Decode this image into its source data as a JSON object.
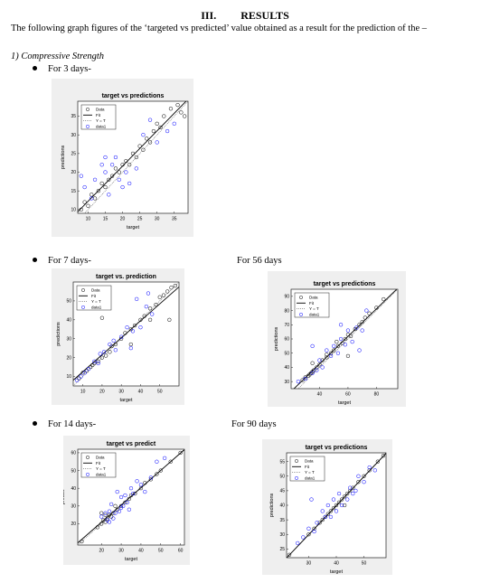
{
  "heading": {
    "number": "III.",
    "title": "RESULTS"
  },
  "intro_text": "The following graph figures of the ‘targeted vs predicted’ value obtained as a result for the prediction of the –",
  "section_label": "1)   Compressive Strength",
  "items": [
    {
      "label": "For 3 days-"
    },
    {
      "label": "For 7 days-"
    },
    {
      "label": "For 56 days"
    },
    {
      "label": "For 14 days-"
    },
    {
      "label": "For 90 days"
    }
  ],
  "colors": {
    "data_circle": "#000000",
    "data1_circle": "#0000ff",
    "fit_line": "#000000",
    "panel_bg": "#efefef"
  },
  "chart_data": [
    {
      "type": "scatter",
      "title": "target vs predictions",
      "xlabel": "target",
      "ylabel": "predictions",
      "xlim": [
        7,
        39
      ],
      "ylim": [
        9,
        39
      ],
      "xticks": [
        10,
        15,
        20,
        25,
        30,
        35
      ],
      "yticks": [
        10,
        15,
        20,
        25,
        30,
        35
      ],
      "legend": [
        "Data",
        "Fit",
        "Y = T",
        "data1"
      ],
      "legend_position": "top-left",
      "series": [
        {
          "name": "Data",
          "points": [
            [
              8,
              10
            ],
            [
              9,
              12
            ],
            [
              10,
              11
            ],
            [
              11,
              14
            ],
            [
              12,
              13
            ],
            [
              13,
              15
            ],
            [
              14,
              17
            ],
            [
              15,
              16
            ],
            [
              16,
              18
            ],
            [
              17,
              19
            ],
            [
              18,
              21
            ],
            [
              19,
              20
            ],
            [
              20,
              22
            ],
            [
              21,
              23
            ],
            [
              22,
              22
            ],
            [
              23,
              25
            ],
            [
              24,
              24
            ],
            [
              25,
              27
            ],
            [
              26,
              26
            ],
            [
              27,
              29
            ],
            [
              28,
              28
            ],
            [
              29,
              31
            ],
            [
              30,
              33
            ],
            [
              31,
              32
            ],
            [
              32,
              35
            ],
            [
              34,
              37
            ],
            [
              36,
              38
            ],
            [
              37,
              36
            ],
            [
              38,
              35
            ]
          ]
        },
        {
          "name": "data1",
          "points": [
            [
              8,
              19
            ],
            [
              9,
              16
            ],
            [
              11,
              13
            ],
            [
              12,
              18
            ],
            [
              14,
              22
            ],
            [
              15,
              20
            ],
            [
              16,
              14
            ],
            [
              18,
              24
            ],
            [
              19,
              18
            ],
            [
              20,
              16
            ],
            [
              22,
              17
            ],
            [
              24,
              21
            ],
            [
              26,
              30
            ],
            [
              28,
              34
            ],
            [
              30,
              28
            ],
            [
              33,
              31
            ],
            [
              35,
              33
            ],
            [
              15,
              24
            ],
            [
              17,
              22
            ],
            [
              21,
              20
            ]
          ]
        }
      ]
    },
    {
      "type": "scatter",
      "title": "target vs. prediction",
      "xlabel": "target",
      "ylabel": "predictions",
      "xlim": [
        5,
        60
      ],
      "ylim": [
        5,
        60
      ],
      "xticks": [
        10,
        20,
        30,
        40,
        50
      ],
      "yticks": [
        10,
        20,
        30,
        40,
        50
      ],
      "legend": [
        "Data",
        "Fit",
        "Y = T",
        "data1"
      ],
      "legend_position": "top-left",
      "series": [
        {
          "name": "Data",
          "points": [
            [
              8,
              9
            ],
            [
              10,
              12
            ],
            [
              12,
              13
            ],
            [
              14,
              15
            ],
            [
              15,
              16
            ],
            [
              16,
              17
            ],
            [
              18,
              18
            ],
            [
              20,
              20
            ],
            [
              22,
              21
            ],
            [
              24,
              23
            ],
            [
              25,
              26
            ],
            [
              27,
              27
            ],
            [
              30,
              30
            ],
            [
              32,
              33
            ],
            [
              35,
              35
            ],
            [
              37,
              37
            ],
            [
              40,
              40
            ],
            [
              42,
              42
            ],
            [
              45,
              46
            ],
            [
              48,
              48
            ],
            [
              50,
              52
            ],
            [
              52,
              53
            ],
            [
              54,
              55
            ],
            [
              56,
              57
            ],
            [
              58,
              58
            ],
            [
              55,
              40
            ],
            [
              45,
              40
            ],
            [
              35,
              27
            ],
            [
              20,
              41
            ]
          ]
        },
        {
          "name": "data1",
          "points": [
            [
              7,
              8
            ],
            [
              9,
              10
            ],
            [
              11,
              12
            ],
            [
              13,
              14
            ],
            [
              16,
              18
            ],
            [
              18,
              17
            ],
            [
              21,
              23
            ],
            [
              24,
              27
            ],
            [
              27,
              24
            ],
            [
              30,
              31
            ],
            [
              33,
              36
            ],
            [
              36,
              34
            ],
            [
              40,
              36
            ],
            [
              43,
              47
            ],
            [
              46,
              43
            ],
            [
              38,
              51
            ],
            [
              44,
              54
            ],
            [
              35,
              25
            ],
            [
              26,
              29
            ],
            [
              19,
              22
            ]
          ]
        }
      ]
    },
    {
      "type": "scatter",
      "title": "target vs predictions",
      "xlabel": "target",
      "ylabel": "predictions",
      "xlim": [
        20,
        95
      ],
      "ylim": [
        25,
        95
      ],
      "xticks": [
        40,
        60,
        80
      ],
      "yticks": [
        30,
        40,
        50,
        60,
        70,
        80,
        90
      ],
      "legend": [
        "Data",
        "Fit",
        "Y = T",
        "data1"
      ],
      "legend_position": "top-left",
      "series": [
        {
          "name": "Data",
          "points": [
            [
              28,
              31
            ],
            [
              30,
              33
            ],
            [
              32,
              34
            ],
            [
              33,
              35
            ],
            [
              34,
              36
            ],
            [
              35,
              37
            ],
            [
              36,
              38
            ],
            [
              38,
              40
            ],
            [
              40,
              42
            ],
            [
              42,
              45
            ],
            [
              45,
              47
            ],
            [
              48,
              50
            ],
            [
              50,
              52
            ],
            [
              53,
              55
            ],
            [
              56,
              57
            ],
            [
              58,
              60
            ],
            [
              60,
              63
            ],
            [
              62,
              62
            ],
            [
              65,
              67
            ],
            [
              68,
              70
            ],
            [
              70,
              72
            ],
            [
              72,
              75
            ],
            [
              75,
              78
            ],
            [
              80,
              82
            ],
            [
              85,
              88
            ],
            [
              52,
              58
            ],
            [
              60,
              48
            ],
            [
              45,
              49
            ],
            [
              35,
              43
            ]
          ]
        },
        {
          "name": "data1",
          "points": [
            [
              25,
              30
            ],
            [
              30,
              32
            ],
            [
              35,
              36
            ],
            [
              38,
              38
            ],
            [
              42,
              40
            ],
            [
              45,
              52
            ],
            [
              48,
              48
            ],
            [
              50,
              55
            ],
            [
              53,
              50
            ],
            [
              55,
              60
            ],
            [
              58,
              56
            ],
            [
              60,
              66
            ],
            [
              63,
              58
            ],
            [
              66,
              68
            ],
            [
              70,
              66
            ],
            [
              73,
              80
            ],
            [
              35,
              55
            ],
            [
              55,
              70
            ],
            [
              40,
              45
            ],
            [
              68,
              52
            ]
          ]
        }
      ]
    },
    {
      "type": "scatter",
      "title": "target vs predict",
      "xlabel": "target",
      "ylabel": "predict",
      "xlim": [
        8,
        62
      ],
      "ylim": [
        8,
        62
      ],
      "xticks": [
        20,
        30,
        40,
        50,
        60
      ],
      "yticks": [
        20,
        30,
        40,
        50,
        60
      ],
      "legend": [
        "Data",
        "Fit",
        "Y = T",
        "data1"
      ],
      "legend_position": "top-left",
      "series": [
        {
          "name": "Data",
          "points": [
            [
              10,
              10
            ],
            [
              18,
              18
            ],
            [
              20,
              20
            ],
            [
              21,
              22
            ],
            [
              22,
              21
            ],
            [
              23,
              23
            ],
            [
              24,
              25
            ],
            [
              25,
              24
            ],
            [
              26,
              26
            ],
            [
              28,
              28
            ],
            [
              30,
              30
            ],
            [
              32,
              32
            ],
            [
              34,
              34
            ],
            [
              35,
              36
            ],
            [
              37,
              37
            ],
            [
              40,
              40
            ],
            [
              42,
              43
            ],
            [
              45,
              45
            ],
            [
              48,
              48
            ],
            [
              50,
              50
            ],
            [
              55,
              55
            ],
            [
              60,
              60
            ],
            [
              22,
              25
            ],
            [
              20,
              26
            ],
            [
              27,
              30
            ]
          ]
        },
        {
          "name": "data1",
          "points": [
            [
              20,
              24
            ],
            [
              22,
              26
            ],
            [
              23,
              22
            ],
            [
              24,
              27
            ],
            [
              25,
              31
            ],
            [
              26,
              23
            ],
            [
              27,
              26
            ],
            [
              28,
              38
            ],
            [
              29,
              27
            ],
            [
              30,
              35
            ],
            [
              31,
              30
            ],
            [
              32,
              36
            ],
            [
              33,
              32
            ],
            [
              34,
              28
            ],
            [
              35,
              40
            ],
            [
              36,
              37
            ],
            [
              38,
              44
            ],
            [
              40,
              42
            ],
            [
              42,
              38
            ],
            [
              45,
              46
            ],
            [
              48,
              55
            ],
            [
              52,
              57
            ],
            [
              24,
              21
            ],
            [
              30,
              29
            ]
          ]
        }
      ]
    },
    {
      "type": "scatter",
      "title": "target vs predictions",
      "xlabel": "target",
      "ylabel": "predictions",
      "xlim": [
        22,
        58
      ],
      "ylim": [
        22,
        58
      ],
      "xticks": [
        30,
        40,
        50
      ],
      "yticks": [
        25,
        30,
        35,
        40,
        45,
        50,
        55
      ],
      "legend": [
        "Data",
        "Fit",
        "Y = T",
        "data1"
      ],
      "legend_position": "top-left",
      "series": [
        {
          "name": "Data",
          "points": [
            [
              23,
              23
            ],
            [
              30,
              30
            ],
            [
              32,
              32
            ],
            [
              34,
              34
            ],
            [
              35,
              35
            ],
            [
              36,
              36
            ],
            [
              38,
              38
            ],
            [
              39,
              39
            ],
            [
              40,
              40
            ],
            [
              41,
              41
            ],
            [
              42,
              42
            ],
            [
              43,
              43
            ],
            [
              44,
              44
            ],
            [
              45,
              45
            ],
            [
              46,
              46
            ],
            [
              48,
              48
            ],
            [
              50,
              50
            ],
            [
              52,
              52
            ],
            [
              55,
              55
            ],
            [
              57,
              57
            ],
            [
              37,
              37
            ],
            [
              43,
              40
            ]
          ]
        },
        {
          "name": "data1",
          "points": [
            [
              26,
              27
            ],
            [
              28,
              29
            ],
            [
              30,
              32
            ],
            [
              32,
              31
            ],
            [
              33,
              34
            ],
            [
              35,
              38
            ],
            [
              36,
              36
            ],
            [
              37,
              40
            ],
            [
              38,
              36
            ],
            [
              39,
              42
            ],
            [
              40,
              38
            ],
            [
              41,
              44
            ],
            [
              42,
              40
            ],
            [
              44,
              42
            ],
            [
              45,
              46
            ],
            [
              46,
              44
            ],
            [
              48,
              50
            ],
            [
              50,
              48
            ],
            [
              52,
              53
            ],
            [
              54,
              52
            ],
            [
              31,
              42
            ],
            [
              47,
              45
            ]
          ]
        }
      ]
    }
  ]
}
